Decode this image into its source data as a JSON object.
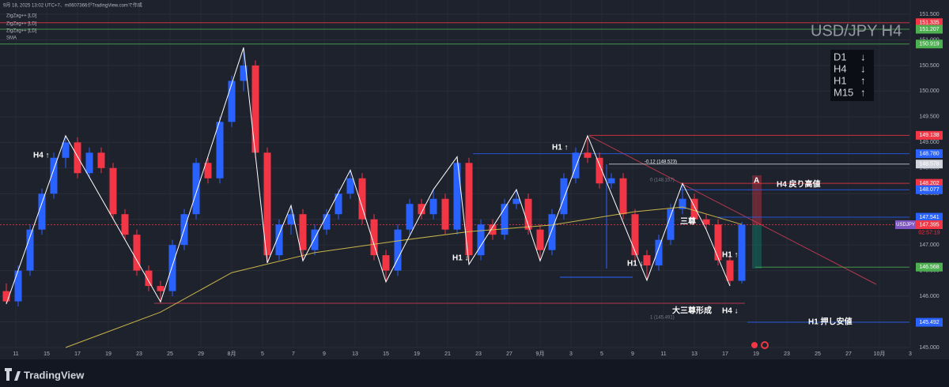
{
  "header": "9月 18, 2025 13:02 UTC+7、m0607366がTradingView.comで作成",
  "indicators": [
    "ZigZag++ [LD]",
    "ZigZag++ [LD]",
    "ZigZag++ [LD]"
  ],
  "brand": "TradingView",
  "chart_data": {
    "type": "candlestick",
    "title": "USD/JPY H4",
    "symbol": "USDJPY",
    "countdown": "02:57:19",
    "up_color": "#2962ff",
    "down_color": "#f23645",
    "categories": [
      "11",
      "15",
      "17",
      "19",
      "23",
      "25",
      "29",
      "8月",
      "5",
      "7",
      "9",
      "13",
      "15",
      "19",
      "21",
      "23",
      "27",
      "9月",
      "3",
      "5",
      "9",
      "11",
      "13",
      "17",
      "19",
      "23",
      "25",
      "27",
      "10月",
      "3"
    ],
    "ylim": [
      145.0,
      151.5
    ],
    "yticks": [
      {
        "value": 145.0,
        "label": "145.000"
      },
      {
        "value": 145.5,
        "label": "145.500"
      },
      {
        "value": 146.0,
        "label": "146.000"
      },
      {
        "value": 146.5,
        "label": "146.500"
      },
      {
        "value": 147.0,
        "label": "147.000"
      },
      {
        "value": 147.5,
        "label": "147.500"
      },
      {
        "value": 148.0,
        "label": "148.000"
      },
      {
        "value": 148.5,
        "label": "148.500"
      },
      {
        "value": 149.0,
        "label": "149.000"
      },
      {
        "value": 149.5,
        "label": "149.500"
      },
      {
        "value": 150.0,
        "label": "150.000"
      },
      {
        "value": 150.5,
        "label": "150.500"
      },
      {
        "value": 151.0,
        "label": "151.000"
      },
      {
        "value": 151.5,
        "label": "151.500"
      }
    ],
    "grid": true,
    "candles": [
      [
        146.1,
        146.25,
        145.85,
        145.9
      ],
      [
        145.9,
        146.6,
        145.8,
        146.5
      ],
      [
        146.5,
        147.4,
        146.4,
        147.3
      ],
      [
        147.3,
        148.1,
        147.2,
        148.0
      ],
      [
        148.0,
        148.8,
        147.9,
        148.7
      ],
      [
        148.7,
        149.13,
        148.5,
        149.0
      ],
      [
        149.0,
        149.1,
        148.3,
        148.4
      ],
      [
        148.4,
        148.9,
        148.3,
        148.8
      ],
      [
        148.8,
        148.9,
        148.4,
        148.5
      ],
      [
        148.5,
        148.6,
        147.5,
        147.6
      ],
      [
        147.6,
        147.7,
        147.1,
        147.2
      ],
      [
        147.2,
        147.3,
        146.4,
        146.5
      ],
      [
        146.5,
        146.6,
        146.1,
        146.2
      ],
      [
        146.2,
        146.3,
        145.89,
        146.1
      ],
      [
        146.1,
        147.1,
        146.0,
        147.0
      ],
      [
        147.0,
        147.7,
        146.9,
        147.6
      ],
      [
        147.6,
        148.7,
        147.5,
        148.6
      ],
      [
        148.6,
        148.7,
        148.2,
        148.3
      ],
      [
        148.3,
        149.5,
        148.2,
        149.4
      ],
      [
        149.4,
        150.3,
        149.3,
        150.2
      ],
      [
        150.2,
        150.85,
        150.0,
        150.5
      ],
      [
        150.5,
        150.6,
        148.7,
        148.8
      ],
      [
        148.8,
        148.9,
        146.65,
        146.8
      ],
      [
        146.8,
        147.5,
        146.7,
        147.4
      ],
      [
        147.4,
        147.77,
        147.2,
        147.6
      ],
      [
        147.6,
        147.7,
        146.69,
        146.9
      ],
      [
        146.9,
        147.4,
        146.8,
        147.3
      ],
      [
        147.3,
        147.7,
        147.2,
        147.6
      ],
      [
        147.6,
        148.1,
        147.5,
        148.0
      ],
      [
        148.0,
        148.46,
        147.9,
        148.3
      ],
      [
        148.3,
        148.4,
        147.4,
        147.5
      ],
      [
        147.5,
        147.6,
        146.7,
        146.8
      ],
      [
        146.8,
        146.9,
        146.28,
        146.5
      ],
      [
        146.5,
        147.4,
        146.4,
        147.3
      ],
      [
        147.3,
        147.9,
        147.2,
        147.8
      ],
      [
        147.8,
        147.9,
        147.5,
        147.6
      ],
      [
        147.6,
        148.08,
        147.5,
        147.9
      ],
      [
        147.9,
        148.0,
        147.2,
        147.3
      ],
      [
        147.3,
        148.72,
        147.2,
        148.6
      ],
      [
        148.6,
        148.7,
        146.62,
        146.8
      ],
      [
        146.8,
        147.5,
        146.7,
        147.4
      ],
      [
        147.4,
        147.5,
        147.1,
        147.2
      ],
      [
        147.2,
        147.9,
        147.1,
        147.8
      ],
      [
        147.8,
        148.08,
        147.7,
        147.9
      ],
      [
        147.9,
        148.0,
        147.2,
        147.3
      ],
      [
        147.3,
        147.4,
        146.69,
        146.9
      ],
      [
        146.9,
        147.7,
        146.8,
        147.6
      ],
      [
        147.6,
        148.4,
        147.5,
        148.3
      ],
      [
        148.3,
        148.9,
        148.2,
        148.8
      ],
      [
        148.8,
        149.13,
        148.6,
        148.7
      ],
      [
        148.7,
        148.8,
        148.1,
        148.2
      ],
      [
        148.2,
        148.4,
        148.1,
        148.3
      ],
      [
        148.3,
        148.4,
        147.5,
        147.6
      ],
      [
        147.6,
        147.7,
        146.7,
        146.8
      ],
      [
        146.8,
        146.9,
        146.31,
        146.6
      ],
      [
        146.6,
        147.2,
        146.5,
        147.1
      ],
      [
        147.1,
        147.8,
        147.0,
        147.7
      ],
      [
        147.7,
        148.2,
        147.6,
        147.9
      ],
      [
        147.9,
        148.0,
        147.4,
        147.5
      ],
      [
        147.5,
        147.6,
        147.3,
        147.4
      ],
      [
        147.4,
        147.5,
        146.6,
        146.7
      ],
      [
        146.7,
        146.8,
        146.2,
        146.3
      ],
      [
        146.3,
        147.45,
        146.25,
        147.395
      ]
    ],
    "zigzag": {
      "color": "#ffffff",
      "x": [
        0,
        5,
        13,
        20,
        22,
        24,
        25,
        29,
        32,
        36,
        38,
        39,
        43,
        45,
        49,
        54,
        57,
        59,
        61
      ],
      "values": [
        145.85,
        149.13,
        145.89,
        150.85,
        146.65,
        147.77,
        146.69,
        148.46,
        146.28,
        148.08,
        148.72,
        146.62,
        148.08,
        146.69,
        149.13,
        146.31,
        148.2,
        147.3,
        146.2
      ]
    },
    "sma": {
      "name": "SMA",
      "color": "#c8b44a",
      "x": [
        5,
        13,
        19,
        26,
        33,
        39,
        46,
        53,
        57,
        62
      ],
      "values": [
        145.0,
        145.69,
        146.46,
        146.85,
        147.08,
        147.26,
        147.39,
        147.65,
        147.74,
        147.4
      ]
    },
    "levels": [
      {
        "price": 151.335,
        "color": "#f23645"
      },
      {
        "price": 151.207,
        "color": "#4caf50"
      },
      {
        "price": 150.919,
        "color": "#4caf50"
      },
      {
        "price": 149.138,
        "color": "#f23645"
      },
      {
        "price": {
          "value": 148.78,
          "label": "148.780"
        },
        "color": "#2962ff"
      },
      {
        "price": 148.578,
        "color": "#d1d4dc"
      },
      {
        "price": 148.202,
        "color": "#f23645"
      },
      {
        "price": 148.077,
        "color": "#2962ff"
      },
      {
        "price": 147.541,
        "color": "#2962ff"
      },
      {
        "price": 147.395,
        "color": "#f23645"
      },
      {
        "price": 146.568,
        "color": "#4caf50"
      },
      {
        "price": 145.492,
        "color": "#2962ff"
      }
    ],
    "annotations": [
      "H4 ↑",
      "H1 ↑",
      "H1 ↓",
      "H1 ↓",
      "H1 ↑",
      "三尊",
      "大三尊形成",
      "H4 ↓",
      "H4 戻り高値",
      "H1 押し安値",
      "A",
      "-0.12 (148.523)",
      "0 (148.157)",
      "1 (145.491)"
    ],
    "panel": [
      {
        "tf": "D1",
        "dir": "↓"
      },
      {
        "tf": "H4",
        "dir": "↓"
      },
      {
        "tf": "H1",
        "dir": "↑"
      },
      {
        "tf": "M15",
        "dir": "↑"
      }
    ]
  }
}
